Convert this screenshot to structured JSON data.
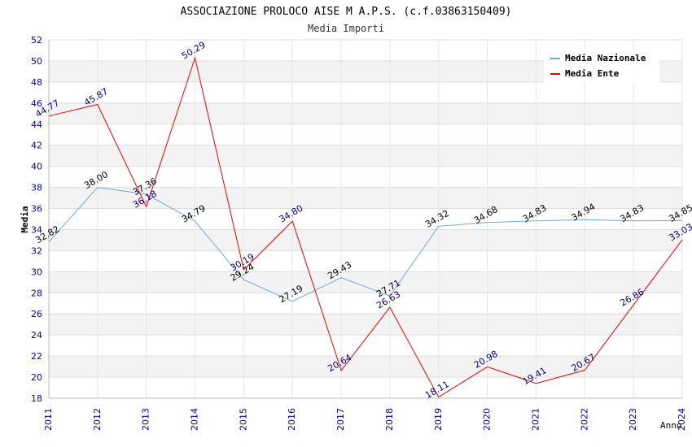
{
  "chart_data": {
    "type": "line",
    "title": "ASSOCIAZIONE PROLOCO AISE M A.P.S. (c.f.03863150409)",
    "subtitle": "Media Importi",
    "xlabel": "Anno",
    "ylabel": "Media",
    "x": [
      "2011",
      "2012",
      "2013",
      "2014",
      "2015",
      "2016",
      "2017",
      "2018",
      "2019",
      "2020",
      "2021",
      "2022",
      "2023",
      "2024"
    ],
    "ylim": [
      18,
      52
    ],
    "ytick_step": 2,
    "grid": true,
    "legend_position": "top-right",
    "series": [
      {
        "name": "Media Nazionale",
        "color": "#6fa8dc",
        "label_color": "#000000",
        "values": [
          32.82,
          38.0,
          37.36,
          34.79,
          29.24,
          27.19,
          29.43,
          27.71,
          34.32,
          34.68,
          34.83,
          34.94,
          34.83,
          34.85
        ],
        "labels": [
          "32.82",
          "38.00",
          "37.36",
          "34.79",
          "29.24",
          "27.19",
          "29.43",
          "27.71",
          "34.32",
          "34.68",
          "34.83",
          "34.94",
          "34.83",
          "34.85"
        ]
      },
      {
        "name": "Media Ente",
        "color": "#ee0000",
        "label_color": "#000080",
        "values": [
          44.77,
          45.87,
          36.18,
          50.29,
          30.19,
          34.8,
          20.64,
          26.63,
          18.11,
          20.98,
          19.41,
          20.67,
          26.86,
          33.03
        ],
        "labels": [
          "44.77",
          "45.87",
          "36.18",
          "50.29",
          "30.19",
          "34.80",
          "20.64",
          "26.63",
          "18.11",
          "20.98",
          "19.41",
          "20.67",
          "26.86",
          "33.03"
        ]
      }
    ]
  }
}
